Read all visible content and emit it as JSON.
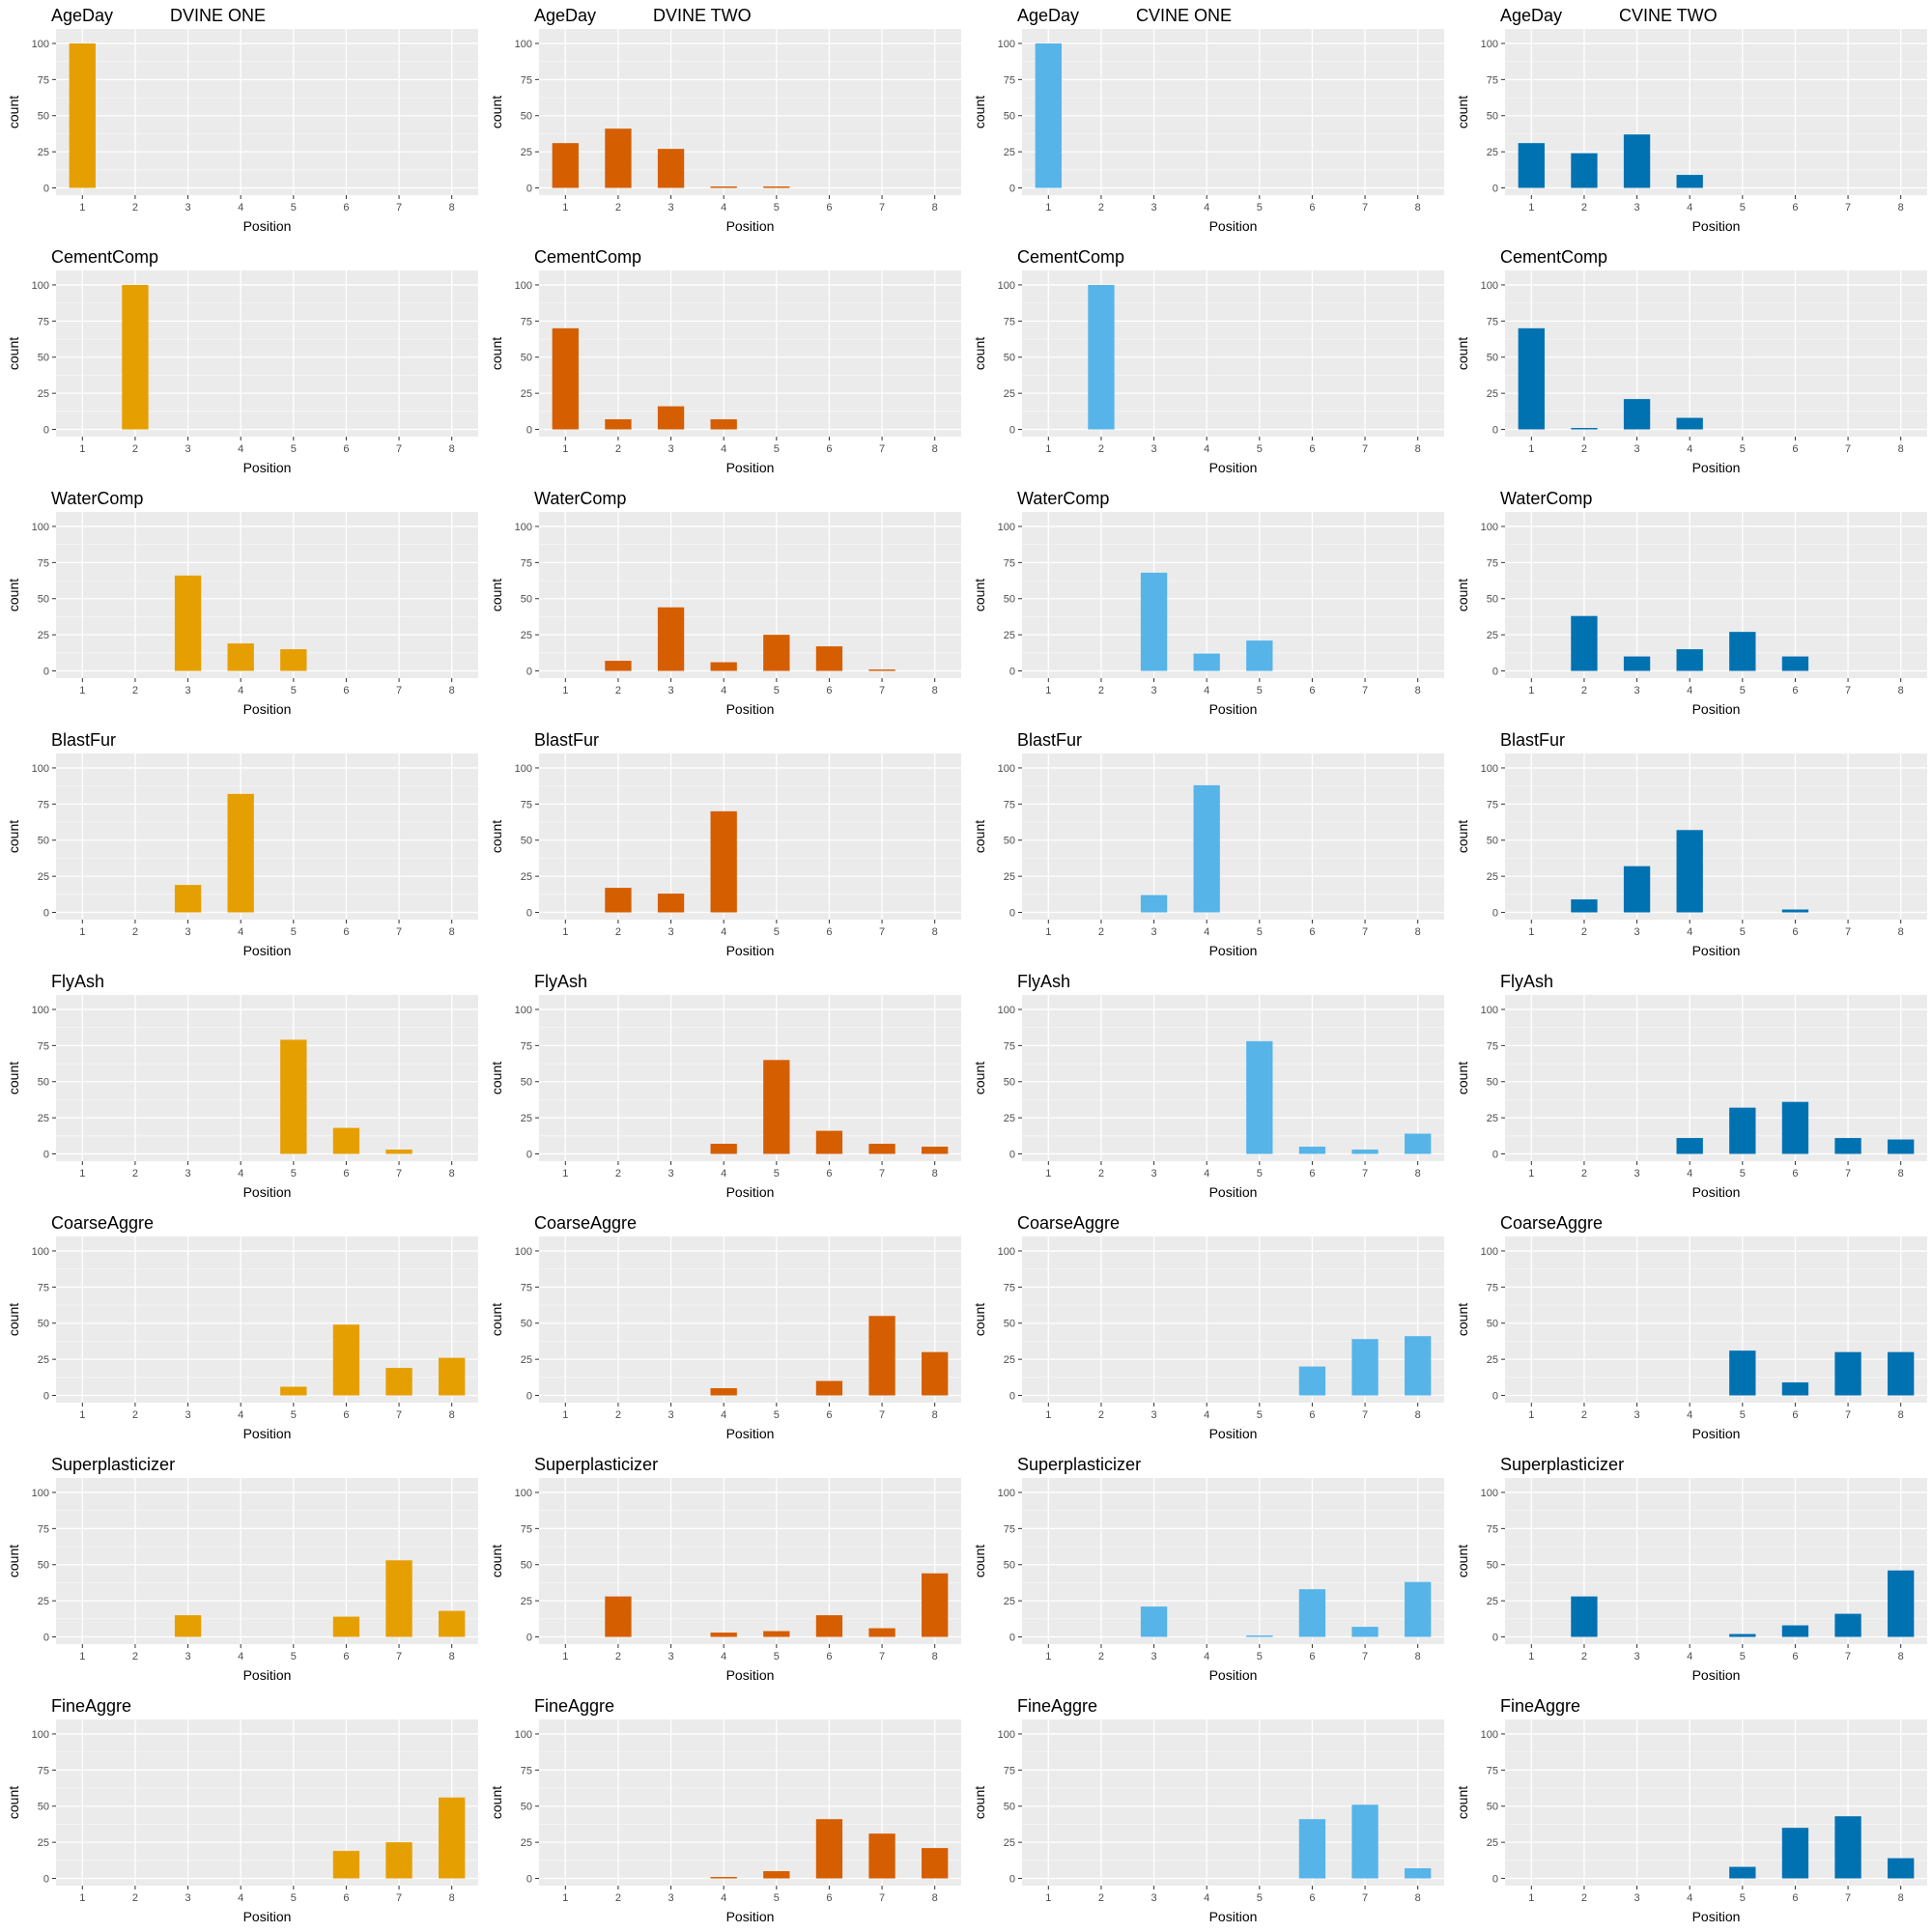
{
  "chart_data": {
    "type": "bar",
    "xlabel": "Position",
    "ylabel": "count",
    "x_ticks": [
      "1",
      "2",
      "3",
      "4",
      "5",
      "6",
      "7",
      "8"
    ],
    "y_ticks": [
      "0",
      "25",
      "50",
      "75",
      "100"
    ],
    "ylim": [
      0,
      100
    ],
    "columns": [
      {
        "title": "DVINE ONE",
        "color": "#E69F00"
      },
      {
        "title": "DVINE TWO",
        "color": "#D55E00"
      },
      {
        "title": "CVINE ONE",
        "color": "#56B4E9"
      },
      {
        "title": "CVINE TWO",
        "color": "#0072B2"
      }
    ],
    "variables": [
      "AgeDay",
      "CementComp",
      "WaterComp",
      "BlastFur",
      "FlyAsh",
      "CoarseAggre",
      "Superplasticizer",
      "FineAggre"
    ],
    "counts": [
      [
        [
          100,
          0,
          0,
          0,
          0,
          0,
          0,
          0
        ],
        [
          31,
          41,
          27,
          1,
          1,
          0,
          0,
          0
        ],
        [
          100,
          0,
          0,
          0,
          0,
          0,
          0,
          0
        ],
        [
          31,
          24,
          37,
          9,
          0,
          0,
          0,
          0
        ]
      ],
      [
        [
          0,
          100,
          0,
          0,
          0,
          0,
          0,
          0
        ],
        [
          70,
          7,
          16,
          7,
          0,
          0,
          0,
          0
        ],
        [
          0,
          100,
          0,
          0,
          0,
          0,
          0,
          0
        ],
        [
          70,
          1,
          21,
          8,
          0,
          0,
          0,
          0
        ]
      ],
      [
        [
          0,
          0,
          66,
          19,
          15,
          0,
          0,
          0
        ],
        [
          0,
          7,
          44,
          6,
          25,
          17,
          1,
          0
        ],
        [
          0,
          0,
          68,
          12,
          21,
          0,
          0,
          0
        ],
        [
          0,
          38,
          10,
          15,
          27,
          10,
          0,
          0
        ]
      ],
      [
        [
          0,
          0,
          19,
          82,
          0,
          0,
          0,
          0
        ],
        [
          0,
          17,
          13,
          70,
          0,
          0,
          0,
          0
        ],
        [
          0,
          0,
          12,
          88,
          0,
          0,
          0,
          0
        ],
        [
          0,
          9,
          32,
          57,
          0,
          2,
          0,
          0
        ]
      ],
      [
        [
          0,
          0,
          0,
          0,
          79,
          18,
          3,
          0
        ],
        [
          0,
          0,
          0,
          7,
          65,
          16,
          7,
          5
        ],
        [
          0,
          0,
          0,
          0,
          78,
          5,
          3,
          14
        ],
        [
          0,
          0,
          0,
          11,
          32,
          36,
          11,
          10
        ]
      ],
      [
        [
          0,
          0,
          0,
          0,
          6,
          49,
          19,
          26
        ],
        [
          0,
          0,
          0,
          5,
          0,
          10,
          55,
          30
        ],
        [
          0,
          0,
          0,
          0,
          0,
          20,
          39,
          41
        ],
        [
          0,
          0,
          0,
          0,
          31,
          9,
          30,
          30
        ]
      ],
      [
        [
          0,
          0,
          15,
          0,
          0,
          14,
          53,
          18
        ],
        [
          0,
          28,
          0,
          3,
          4,
          15,
          6,
          44
        ],
        [
          0,
          0,
          21,
          0,
          1,
          33,
          7,
          38
        ],
        [
          0,
          28,
          0,
          0,
          2,
          8,
          16,
          46
        ]
      ],
      [
        [
          0,
          0,
          0,
          0,
          0,
          19,
          25,
          56
        ],
        [
          0,
          0,
          0,
          1,
          5,
          41,
          31,
          21
        ],
        [
          0,
          0,
          0,
          0,
          0,
          41,
          51,
          7
        ],
        [
          0,
          0,
          0,
          0,
          8,
          35,
          43,
          14
        ]
      ]
    ]
  }
}
